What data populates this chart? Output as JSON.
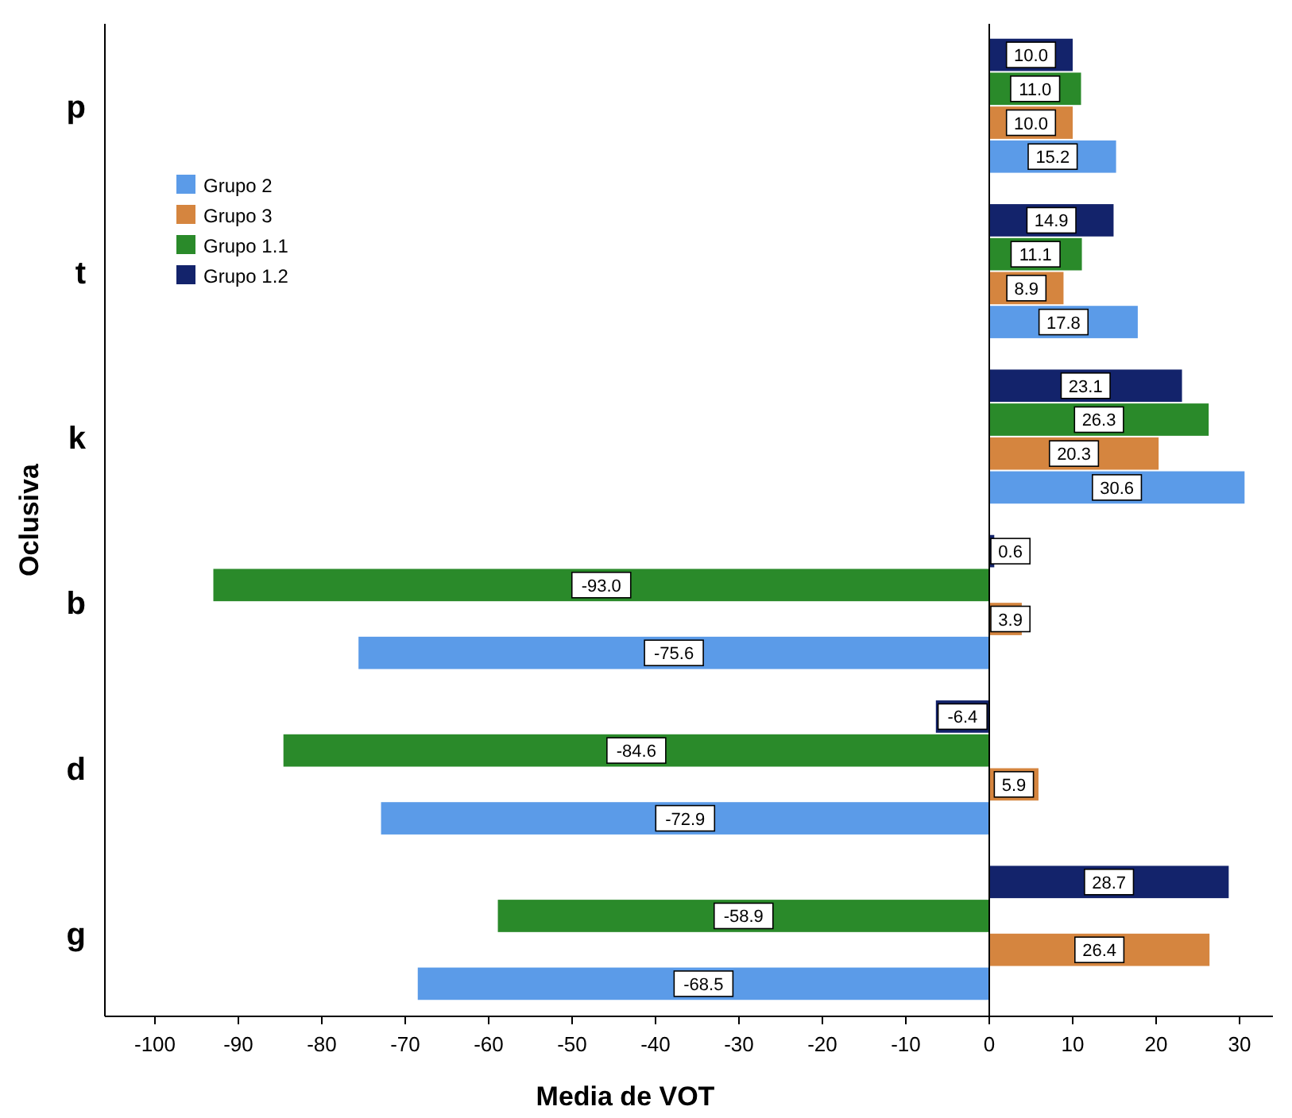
{
  "chart_data": {
    "type": "bar",
    "orientation": "horizontal",
    "xlabel": "Media de VOT",
    "ylabel": "Oclusiva",
    "categories": [
      "p",
      "t",
      "k",
      "b",
      "d",
      "g"
    ],
    "series": [
      {
        "name": "Grupo 2",
        "color": "#5b9be8",
        "values": [
          15.2,
          17.8,
          30.6,
          -75.6,
          -72.9,
          -68.5
        ],
        "value_labels": [
          "15.2",
          "17.8",
          "30.6",
          "-75.6",
          "-72.9",
          "-68.5"
        ]
      },
      {
        "name": "Grupo 3",
        "color": "#d5853f",
        "values": [
          10,
          8.9,
          20.3,
          3.9,
          5.9,
          26.4
        ],
        "value_labels": [
          "10.0",
          "8.9",
          "20.3",
          "3.9",
          "5.9",
          "26.4"
        ]
      },
      {
        "name": "Grupo 1.1",
        "color": "#2a8a2a",
        "values": [
          11,
          11.1,
          26.3,
          -93,
          -84.6,
          -58.9
        ],
        "value_labels": [
          "11.0",
          "11.1",
          "26.3",
          "-93.0",
          "-84.6",
          "-58.9"
        ]
      },
      {
        "name": "Grupo 1.2",
        "color": "#13236b",
        "values": [
          10,
          14.9,
          23.1,
          0.6,
          -6.4,
          28.7
        ],
        "value_labels": [
          "10.0",
          "14.9",
          "23.1",
          "0.6",
          "-6.4",
          "28.7"
        ]
      }
    ],
    "xlim": [
      -106,
      34
    ],
    "xticks": [
      -100,
      -90,
      -80,
      -70,
      -60,
      -50,
      -40,
      -30,
      -20,
      -10,
      0,
      10,
      20,
      30
    ],
    "ref_lines": [
      {
        "axis": "x",
        "value": 0
      }
    ],
    "legend": "top left",
    "grid": false
  }
}
